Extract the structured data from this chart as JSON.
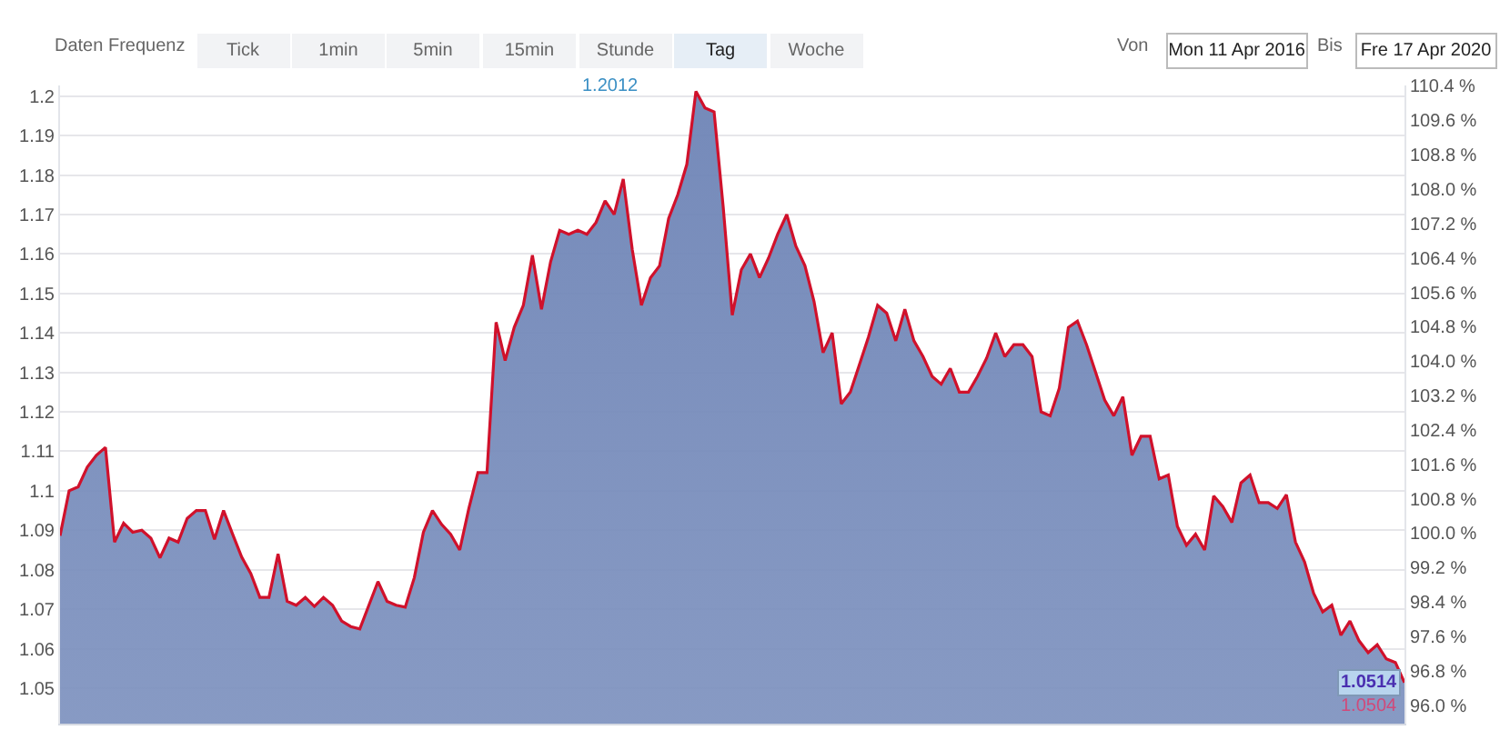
{
  "chart_data": {
    "type": "area",
    "categories": [
      null,
      null,
      null,
      null,
      null,
      null,
      null,
      null,
      null,
      null,
      null,
      null,
      null,
      null,
      null,
      null,
      null,
      null,
      null,
      null,
      null,
      null,
      null,
      null,
      null,
      null,
      null,
      null,
      null,
      null,
      null,
      null,
      null,
      null,
      null,
      null,
      null,
      null,
      null,
      null,
      null,
      null,
      null,
      null,
      null,
      null,
      null,
      null,
      null,
      null,
      null,
      null,
      null,
      null,
      null,
      null,
      null,
      null,
      null,
      null,
      null,
      null,
      null,
      null,
      null,
      null,
      null,
      null,
      null,
      null,
      null,
      null,
      null,
      null,
      null,
      null,
      null,
      null,
      null,
      null,
      null,
      null,
      null,
      null,
      null,
      null,
      null,
      null,
      null,
      null,
      null,
      null,
      null,
      null,
      null,
      null,
      null,
      null,
      null,
      null,
      null,
      null,
      null,
      null,
      null,
      null,
      null,
      null,
      null,
      null,
      null,
      null,
      null,
      null,
      null,
      null,
      null,
      null,
      null,
      null,
      null,
      null,
      null,
      null,
      null,
      null,
      null,
      null,
      null,
      null,
      null,
      null,
      null,
      null,
      null,
      null,
      null,
      null,
      null,
      null,
      null,
      null,
      null,
      null,
      null,
      null,
      null,
      null,
      null
    ],
    "series": [
      {
        "color": "#d0112b",
        "values": [
          1.0886,
          1.1,
          1.101,
          1.106,
          1.109,
          1.111,
          1.087,
          1.0918,
          1.0895,
          1.09,
          1.088,
          1.083,
          1.088,
          1.087,
          1.093,
          1.095,
          1.095,
          1.0877,
          1.095,
          1.089,
          1.0832,
          1.079,
          1.073,
          1.073,
          1.084,
          1.072,
          1.071,
          1.073,
          1.0707,
          1.073,
          1.071,
          1.067,
          1.0656,
          1.065,
          1.071,
          1.077,
          1.072,
          1.071,
          1.0705,
          1.078,
          1.0895,
          1.095,
          1.0915,
          1.089,
          1.085,
          1.0955,
          1.1046,
          1.1046,
          1.1427,
          1.133,
          1.1414,
          1.147,
          1.1597,
          1.146,
          1.158,
          1.166,
          1.165,
          1.166,
          1.165,
          1.168,
          1.1735,
          1.17,
          1.179,
          1.161,
          1.147,
          1.154,
          1.157,
          1.169,
          1.175,
          1.1827,
          1.2012,
          1.197,
          1.196,
          1.172,
          1.1445,
          1.156,
          1.16,
          1.154,
          1.159,
          1.165,
          1.17,
          1.162,
          1.157,
          1.148,
          1.135,
          1.14,
          1.122,
          1.125,
          1.132,
          1.139,
          1.147,
          1.145,
          1.138,
          1.146,
          1.138,
          1.134,
          1.129,
          1.127,
          1.131,
          1.125,
          1.125,
          1.129,
          1.1336,
          1.14,
          1.134,
          1.137,
          1.137,
          1.134,
          1.12,
          1.119,
          1.126,
          1.1414,
          1.143,
          1.137,
          1.13,
          1.123,
          1.119,
          1.1238,
          1.109,
          1.1138,
          1.1138,
          1.103,
          1.104,
          1.091,
          1.0862,
          1.089,
          1.085,
          1.0987,
          1.096,
          1.092,
          1.102,
          1.104,
          1.097,
          1.097,
          1.0955,
          1.099,
          1.087,
          1.082,
          1.074,
          1.0693,
          1.071,
          1.0634,
          1.067,
          1.062,
          1.059,
          1.061,
          1.0574,
          1.0565,
          1.0514
        ]
      }
    ],
    "ylim": [
      1.041,
      1.2027
    ],
    "yticks": [
      1.05,
      1.06,
      1.07,
      1.08,
      1.09,
      1.1,
      1.11,
      1.12,
      1.13,
      1.14,
      1.15,
      1.16,
      1.17,
      1.18,
      1.19,
      1.2
    ],
    "y2lim": [
      95.57,
      110.41
    ],
    "y2ticks": [
      {
        "value": 96.0,
        "label": "96.0 %"
      },
      {
        "value": 96.8,
        "label": "96.8 %"
      },
      {
        "value": 97.6,
        "label": "97.6 %"
      },
      {
        "value": 98.4,
        "label": "98.4 %"
      },
      {
        "value": 99.2,
        "label": "99.2 %"
      },
      {
        "value": 100.0,
        "label": "100.0 %"
      },
      {
        "value": 100.8,
        "label": "100.8 %"
      },
      {
        "value": 101.6,
        "label": "101.6 %"
      },
      {
        "value": 102.4,
        "label": "102.4 %"
      },
      {
        "value": 103.2,
        "label": "103.2 %"
      },
      {
        "value": 104.0,
        "label": "104.0 %"
      },
      {
        "value": 104.8,
        "label": "104.8 %"
      },
      {
        "value": 105.6,
        "label": "105.6 %"
      },
      {
        "value": 106.4,
        "label": "106.4 %"
      },
      {
        "value": 107.2,
        "label": "107.2 %"
      },
      {
        "value": 108.0,
        "label": "108.0 %"
      },
      {
        "value": 108.8,
        "label": "108.8 %"
      },
      {
        "value": 109.6,
        "label": "109.6 %"
      },
      {
        "value": 110.4,
        "label": "110.4 %"
      }
    ],
    "tick_labels": "y",
    "grid": "y",
    "annotations": [
      "Daten Frequenz",
      "Tick",
      "1min",
      "5min",
      "15min",
      "Stunde",
      "Tag",
      "Woche",
      "Von",
      "Mon 11 Apr 2016",
      "Bis",
      "Fre 17 Apr 2020",
      "1.2012",
      {
        "text": "1.0514",
        "y": 1.0514
      },
      "1.0504"
    ]
  }
}
